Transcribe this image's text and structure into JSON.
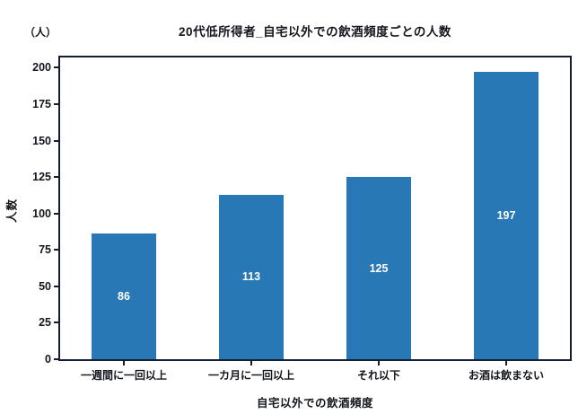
{
  "figure": {
    "unit_label": "（人）",
    "background_color": "#ffffff",
    "text_color": "#13161c",
    "spine_color": "#141d33"
  },
  "chart_data": {
    "type": "bar",
    "title": "20代低所得者_自宅以外での飲酒頻度ごとの人数",
    "categories": [
      "一週間に一回以上",
      "一カ月に一回以上",
      "それ以下",
      "お酒は飲まない"
    ],
    "values": [
      86,
      113,
      125,
      197
    ],
    "xlabel": "自宅以外での飲酒頻度",
    "ylabel": "人数",
    "ylim": [
      0,
      207
    ],
    "yticks": [
      0,
      25,
      50,
      75,
      100,
      125,
      150,
      175,
      200
    ],
    "grid": false,
    "legend": "none",
    "bar_color": "#2878b5",
    "value_label_color": "#ffffff",
    "value_labels_inside_bars": true
  }
}
